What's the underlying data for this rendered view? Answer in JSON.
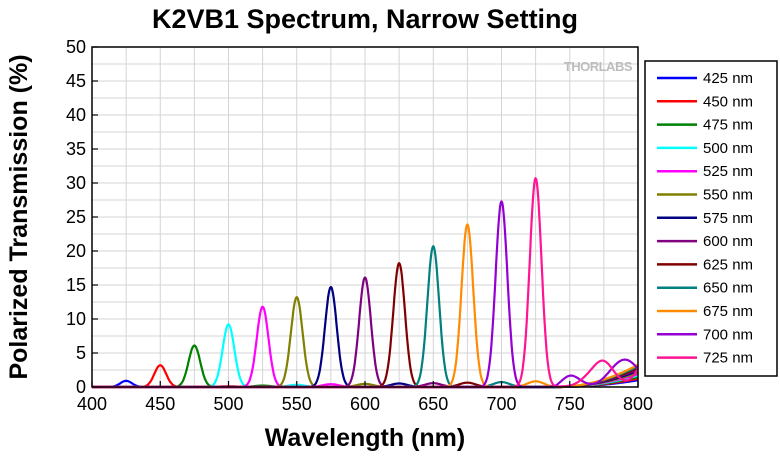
{
  "watermark": "THORLABS",
  "chart_data": {
    "type": "line",
    "title": "K2VB1 Spectrum, Narrow Setting",
    "xlabel": "Wavelength (nm)",
    "ylabel": "Polarized Transmission (%)",
    "xlim": [
      400,
      800
    ],
    "ylim": [
      0,
      50
    ],
    "xticks": [
      400,
      450,
      500,
      550,
      600,
      650,
      700,
      750,
      800
    ],
    "yticks": [
      0,
      5,
      10,
      15,
      20,
      25,
      30,
      35,
      40,
      45,
      50
    ],
    "grid": true,
    "legend_position": "right",
    "series": [
      {
        "name": "425 nm",
        "color": "#0000ff",
        "center": 425,
        "peak": 0.9
      },
      {
        "name": "450 nm",
        "color": "#ff0000",
        "center": 450,
        "peak": 3.2
      },
      {
        "name": "475 nm",
        "color": "#008000",
        "center": 475,
        "peak": 6.1
      },
      {
        "name": "500 nm",
        "color": "#00ffff",
        "center": 500,
        "peak": 9.2
      },
      {
        "name": "525 nm",
        "color": "#ff00ff",
        "center": 525,
        "peak": 11.8
      },
      {
        "name": "550 nm",
        "color": "#808000",
        "center": 550,
        "peak": 13.2
      },
      {
        "name": "575 nm",
        "color": "#000080",
        "center": 575,
        "peak": 14.7
      },
      {
        "name": "600 nm",
        "color": "#800080",
        "center": 600,
        "peak": 16.1
      },
      {
        "name": "625 nm",
        "color": "#800000",
        "center": 625,
        "peak": 18.2
      },
      {
        "name": "650 nm",
        "color": "#008080",
        "center": 650,
        "peak": 20.7
      },
      {
        "name": "675 nm",
        "color": "#ff8c00",
        "center": 675,
        "peak": 23.9
      },
      {
        "name": "700 nm",
        "color": "#9400d3",
        "center": 700,
        "peak": 27.3
      },
      {
        "name": "725 nm",
        "color": "#ff1493",
        "center": 725,
        "peak": 30.7
      }
    ]
  }
}
